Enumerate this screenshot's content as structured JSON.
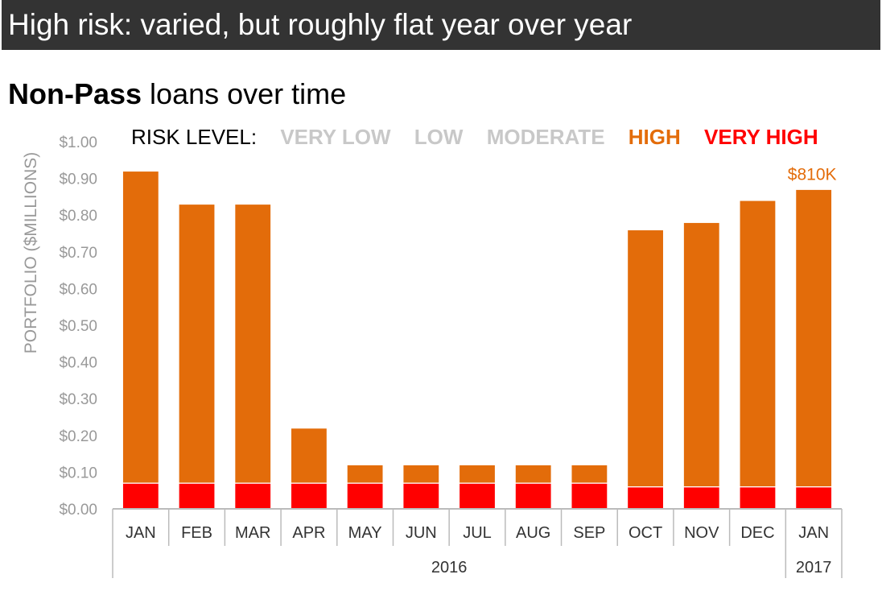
{
  "banner": {
    "title": "High risk: varied, but roughly flat year over year"
  },
  "subtitle": {
    "bold": "Non-Pass",
    "rest": " loans over time"
  },
  "legend": {
    "label": "RISK LEVEL:",
    "items": [
      {
        "name": "VERY LOW",
        "color": "#c8c8c8"
      },
      {
        "name": "LOW",
        "color": "#c8c8c8"
      },
      {
        "name": "MODERATE",
        "color": "#c8c8c8"
      },
      {
        "name": "HIGH",
        "color": "#e36c0a"
      },
      {
        "name": "VERY HIGH",
        "color": "#ff0000"
      }
    ]
  },
  "chart_data": {
    "type": "bar",
    "stacked": true,
    "categories": [
      "JAN",
      "FEB",
      "MAR",
      "APR",
      "MAY",
      "JUN",
      "JUL",
      "AUG",
      "SEP",
      "OCT",
      "NOV",
      "DEC",
      "JAN"
    ],
    "year_groups": [
      {
        "label": "2016",
        "count": 12
      },
      {
        "label": "2017",
        "count": 1
      }
    ],
    "series": [
      {
        "name": "VERY HIGH",
        "color": "#ff0000",
        "values": [
          0.07,
          0.07,
          0.07,
          0.07,
          0.07,
          0.07,
          0.07,
          0.07,
          0.07,
          0.06,
          0.06,
          0.06,
          0.06
        ]
      },
      {
        "name": "HIGH",
        "color": "#e36c0a",
        "values": [
          0.85,
          0.76,
          0.76,
          0.15,
          0.05,
          0.05,
          0.05,
          0.05,
          0.05,
          0.7,
          0.72,
          0.78,
          0.81
        ]
      }
    ],
    "ylabel": "PORTFOLIO ($MILLIONS)",
    "yticks": [
      "$0.00",
      "$0.10",
      "$0.20",
      "$0.30",
      "$0.40",
      "$0.50",
      "$0.60",
      "$0.70",
      "$0.80",
      "$0.90",
      "$1.00"
    ],
    "ylim": [
      0,
      1.0
    ],
    "annotations": [
      {
        "category_index": 12,
        "text": "$810K",
        "color": "#e36c0a"
      }
    ],
    "grid": false
  }
}
